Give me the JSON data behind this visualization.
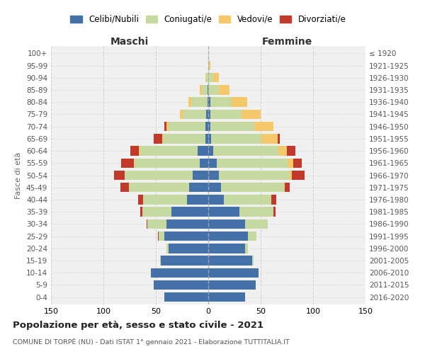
{
  "age_groups": [
    "0-4",
    "5-9",
    "10-14",
    "15-19",
    "20-24",
    "25-29",
    "30-34",
    "35-39",
    "40-44",
    "45-49",
    "50-54",
    "55-59",
    "60-64",
    "65-69",
    "70-74",
    "75-79",
    "80-84",
    "85-89",
    "90-94",
    "95-99",
    "100+"
  ],
  "birth_years": [
    "2016-2020",
    "2011-2015",
    "2006-2010",
    "2001-2005",
    "1996-2000",
    "1991-1995",
    "1986-1990",
    "1981-1985",
    "1976-1980",
    "1971-1975",
    "1966-1970",
    "1961-1965",
    "1956-1960",
    "1951-1955",
    "1946-1950",
    "1941-1945",
    "1936-1940",
    "1931-1935",
    "1926-1930",
    "1921-1925",
    "≤ 1920"
  ],
  "colors": {
    "celibi": "#4472a8",
    "coniugati": "#c5d9a0",
    "vedovi": "#f5c96a",
    "divorziati": "#c0392b"
  },
  "maschi": {
    "celibi": [
      42,
      52,
      55,
      45,
      38,
      42,
      40,
      35,
      20,
      18,
      15,
      8,
      10,
      3,
      3,
      2,
      1,
      1,
      0,
      0,
      0
    ],
    "coniugati": [
      0,
      0,
      0,
      1,
      2,
      5,
      18,
      28,
      42,
      58,
      65,
      62,
      55,
      40,
      35,
      22,
      15,
      5,
      2,
      0,
      0
    ],
    "vedovi": [
      0,
      0,
      0,
      0,
      0,
      0,
      0,
      0,
      0,
      0,
      0,
      1,
      1,
      1,
      2,
      3,
      3,
      2,
      1,
      0,
      0
    ],
    "divorziati": [
      0,
      0,
      0,
      0,
      0,
      1,
      1,
      2,
      5,
      8,
      10,
      12,
      8,
      8,
      2,
      0,
      0,
      0,
      0,
      0,
      0
    ]
  },
  "femmine": {
    "celibi": [
      35,
      45,
      48,
      42,
      35,
      38,
      35,
      30,
      15,
      12,
      10,
      8,
      5,
      3,
      2,
      2,
      2,
      0,
      0,
      0,
      0
    ],
    "coniugati": [
      0,
      0,
      0,
      1,
      3,
      8,
      22,
      32,
      45,
      60,
      68,
      68,
      62,
      48,
      42,
      30,
      20,
      10,
      5,
      1,
      0
    ],
    "vedovi": [
      0,
      0,
      0,
      0,
      0,
      0,
      0,
      0,
      0,
      1,
      2,
      5,
      8,
      15,
      18,
      18,
      15,
      10,
      5,
      1,
      0
    ],
    "divorziati": [
      0,
      0,
      0,
      0,
      0,
      0,
      0,
      2,
      5,
      5,
      12,
      8,
      8,
      2,
      0,
      0,
      0,
      0,
      0,
      0,
      0
    ]
  },
  "xlim": 150,
  "title": "Popolazione per età, sesso e stato civile - 2021",
  "subtitle": "COMUNE DI TORPÈ (NU) - Dati ISTAT 1° gennaio 2021 - Elaborazione TUTTITALIA.IT",
  "xlabel_left": "Maschi",
  "xlabel_right": "Femmine",
  "ylabel_left": "Fasce di età",
  "legend_labels": [
    "Celibi/Nubili",
    "Coniugati/e",
    "Vedovi/e",
    "Divorziati/e"
  ],
  "background_color": "#ffffff",
  "plot_background": "#f0f0f0"
}
